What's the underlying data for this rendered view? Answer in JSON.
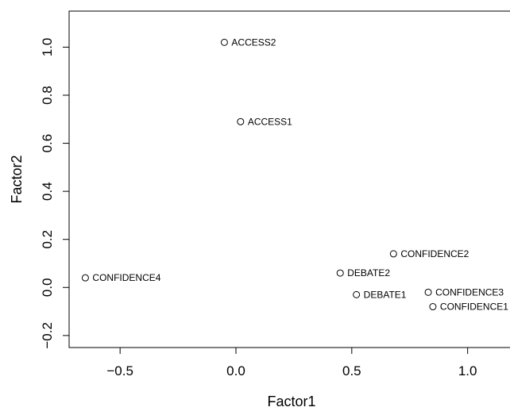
{
  "chart_data": {
    "type": "scatter",
    "xlabel": "Factor1",
    "ylabel": "Factor2",
    "xlim": [
      -0.72,
      1.2
    ],
    "ylim": [
      -0.25,
      1.15
    ],
    "x_ticks": [
      -0.5,
      0.0,
      0.5,
      1.0
    ],
    "x_tick_labels": [
      "−0.5",
      "0.0",
      "0.5",
      "1.0"
    ],
    "y_ticks": [
      -0.2,
      0.0,
      0.2,
      0.4,
      0.6,
      0.8,
      1.0
    ],
    "y_tick_labels": [
      "−0.2",
      "0.0",
      "0.2",
      "0.4",
      "0.6",
      "0.8",
      "1.0"
    ],
    "grid": false,
    "marker": "open-circle",
    "points": [
      {
        "label": "ACCESS2",
        "x": -0.05,
        "y": 1.02
      },
      {
        "label": "ACCESS1",
        "x": 0.02,
        "y": 0.69
      },
      {
        "label": "CONFIDENCE2",
        "x": 0.68,
        "y": 0.14
      },
      {
        "label": "DEBATE2",
        "x": 0.45,
        "y": 0.06
      },
      {
        "label": "CONFIDENCE4",
        "x": -0.65,
        "y": 0.04
      },
      {
        "label": "CONFIDENCE3",
        "x": 0.83,
        "y": -0.02
      },
      {
        "label": "DEBATE1",
        "x": 0.52,
        "y": -0.03
      },
      {
        "label": "CONFIDENCE1",
        "x": 0.85,
        "y": -0.08
      }
    ]
  }
}
